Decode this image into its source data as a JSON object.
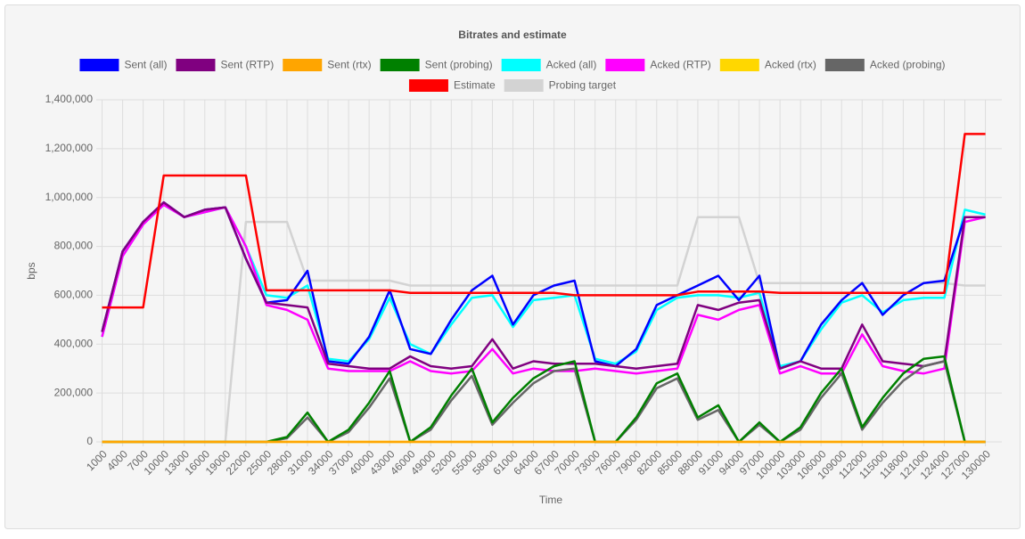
{
  "chart_data": {
    "type": "line",
    "title": "Bitrates and estimate",
    "x_label": "Time",
    "y_label": "bps",
    "x": [
      1000,
      4000,
      7000,
      10000,
      13000,
      16000,
      19000,
      22000,
      25000,
      28000,
      31000,
      34000,
      37000,
      40000,
      43000,
      46000,
      49000,
      52000,
      55000,
      58000,
      61000,
      64000,
      67000,
      70000,
      73000,
      76000,
      79000,
      82000,
      85000,
      88000,
      91000,
      94000,
      97000,
      100000,
      103000,
      106000,
      109000,
      112000,
      115000,
      118000,
      121000,
      124000,
      127000,
      130000
    ],
    "xlim": [
      800,
      132400
    ],
    "xticks": [
      1000,
      4000,
      7000,
      10000,
      13000,
      16000,
      19000,
      22000,
      25000,
      28000,
      31000,
      34000,
      37000,
      40000,
      43000,
      46000,
      49000,
      52000,
      55000,
      58000,
      61000,
      64000,
      67000,
      70000,
      73000,
      76000,
      79000,
      82000,
      85000,
      88000,
      91000,
      94000,
      97000,
      100000,
      103000,
      106000,
      109000,
      112000,
      115000,
      118000,
      121000,
      124000,
      127000,
      130000
    ],
    "ylim": [
      0,
      1400000
    ],
    "yticks": [
      0,
      {
        "value": 200000,
        "label": "200,000"
      },
      {
        "value": 400000,
        "label": "400,000"
      },
      {
        "value": 600000,
        "label": "600,000"
      },
      {
        "value": 800000,
        "label": "800,000"
      },
      {
        "value": 1000000,
        "label": "1,000,000"
      },
      {
        "value": 1200000,
        "label": "1,200,000"
      },
      {
        "value": 1400000,
        "label": "1,400,000"
      }
    ],
    "grid": true,
    "legend": "top",
    "series": [
      {
        "name": "Probing target",
        "color": "#d3d3d3",
        "values": [
          0,
          0,
          0,
          0,
          0,
          0,
          0,
          900000,
          900000,
          900000,
          660000,
          660000,
          660000,
          660000,
          660000,
          640000,
          640000,
          640000,
          640000,
          640000,
          640000,
          640000,
          640000,
          640000,
          640000,
          640000,
          640000,
          640000,
          640000,
          920000,
          920000,
          920000,
          650000,
          650000,
          650000,
          650000,
          650000,
          650000,
          650000,
          650000,
          650000,
          650000,
          640000,
          640000
        ]
      },
      {
        "name": "Acked (all)",
        "color": "#00ffff",
        "values": [
          430000,
          760000,
          890000,
          970000,
          920000,
          940000,
          960000,
          800000,
          600000,
          590000,
          640000,
          340000,
          330000,
          420000,
          590000,
          400000,
          360000,
          480000,
          590000,
          600000,
          470000,
          580000,
          590000,
          600000,
          340000,
          320000,
          370000,
          540000,
          590000,
          600000,
          600000,
          590000,
          610000,
          310000,
          330000,
          460000,
          570000,
          600000,
          530000,
          580000,
          590000,
          590000,
          950000,
          930000
        ]
      },
      {
        "name": "Sent (all)",
        "color": "#0000ff",
        "values": [
          450000,
          780000,
          900000,
          980000,
          920000,
          950000,
          960000,
          750000,
          570000,
          580000,
          700000,
          330000,
          320000,
          430000,
          620000,
          380000,
          360000,
          500000,
          620000,
          680000,
          480000,
          600000,
          640000,
          660000,
          330000,
          310000,
          380000,
          560000,
          600000,
          640000,
          680000,
          580000,
          680000,
          300000,
          330000,
          480000,
          580000,
          650000,
          520000,
          600000,
          650000,
          660000,
          920000,
          920000
        ]
      },
      {
        "name": "Acked (RTP)",
        "color": "#ff00ff",
        "values": [
          430000,
          760000,
          890000,
          970000,
          920000,
          940000,
          960000,
          800000,
          560000,
          540000,
          500000,
          300000,
          290000,
          290000,
          290000,
          330000,
          290000,
          280000,
          290000,
          380000,
          280000,
          300000,
          290000,
          290000,
          300000,
          290000,
          280000,
          290000,
          300000,
          520000,
          500000,
          540000,
          560000,
          280000,
          310000,
          280000,
          280000,
          440000,
          310000,
          290000,
          280000,
          300000,
          900000,
          920000
        ]
      },
      {
        "name": "Sent (RTP)",
        "color": "#800080",
        "values": [
          450000,
          780000,
          900000,
          980000,
          920000,
          950000,
          960000,
          750000,
          570000,
          560000,
          550000,
          320000,
          310000,
          300000,
          300000,
          350000,
          310000,
          300000,
          310000,
          420000,
          300000,
          330000,
          320000,
          320000,
          320000,
          310000,
          300000,
          310000,
          320000,
          560000,
          540000,
          570000,
          580000,
          300000,
          330000,
          300000,
          300000,
          480000,
          330000,
          320000,
          310000,
          330000,
          920000,
          920000
        ]
      },
      {
        "name": "Acked (probing)",
        "color": "#666666",
        "values": [
          0,
          0,
          0,
          0,
          0,
          0,
          0,
          0,
          0,
          15000,
          100000,
          0,
          40000,
          140000,
          260000,
          0,
          50000,
          170000,
          270000,
          70000,
          160000,
          240000,
          290000,
          300000,
          0,
          0,
          90000,
          220000,
          260000,
          90000,
          130000,
          0,
          70000,
          0,
          50000,
          180000,
          280000,
          50000,
          160000,
          250000,
          310000,
          330000,
          0,
          0
        ]
      },
      {
        "name": "Sent (probing)",
        "color": "#008000",
        "values": [
          0,
          0,
          0,
          0,
          0,
          0,
          0,
          0,
          0,
          20000,
          120000,
          0,
          50000,
          160000,
          290000,
          0,
          60000,
          190000,
          300000,
          80000,
          180000,
          260000,
          310000,
          330000,
          0,
          0,
          100000,
          240000,
          280000,
          100000,
          150000,
          0,
          80000,
          0,
          60000,
          200000,
          300000,
          60000,
          180000,
          280000,
          340000,
          350000,
          0,
          0
        ]
      },
      {
        "name": "Estimate",
        "color": "#ff0000",
        "values": [
          550000,
          550000,
          550000,
          1090000,
          1090000,
          1090000,
          1090000,
          1090000,
          620000,
          620000,
          620000,
          620000,
          620000,
          620000,
          620000,
          610000,
          610000,
          610000,
          610000,
          610000,
          610000,
          610000,
          610000,
          600000,
          600000,
          600000,
          600000,
          600000,
          600000,
          615000,
          615000,
          615000,
          615000,
          610000,
          610000,
          610000,
          610000,
          610000,
          610000,
          610000,
          610000,
          610000,
          1260000,
          1260000
        ]
      },
      {
        "name": "Acked (rtx)",
        "color": "#ffd700",
        "values": [
          0,
          0,
          0,
          0,
          0,
          0,
          0,
          0,
          0,
          0,
          0,
          0,
          0,
          0,
          0,
          0,
          0,
          0,
          0,
          0,
          0,
          0,
          0,
          0,
          0,
          0,
          0,
          0,
          0,
          0,
          0,
          0,
          0,
          0,
          0,
          0,
          0,
          0,
          0,
          0,
          0,
          0,
          0,
          0
        ]
      },
      {
        "name": "Sent (rtx)",
        "color": "#ffa500",
        "values": [
          0,
          0,
          0,
          0,
          0,
          0,
          0,
          0,
          0,
          0,
          0,
          0,
          0,
          0,
          0,
          0,
          0,
          0,
          0,
          0,
          0,
          0,
          0,
          0,
          0,
          0,
          0,
          0,
          0,
          0,
          0,
          0,
          0,
          0,
          0,
          0,
          0,
          0,
          0,
          0,
          0,
          0,
          0,
          0
        ]
      }
    ],
    "legend_order": [
      "Sent (all)",
      "Sent (RTP)",
      "Sent (rtx)",
      "Sent (probing)",
      "Acked (all)",
      "Acked (RTP)",
      "Acked (rtx)",
      "Acked (probing)",
      "Estimate",
      "Probing target"
    ]
  }
}
